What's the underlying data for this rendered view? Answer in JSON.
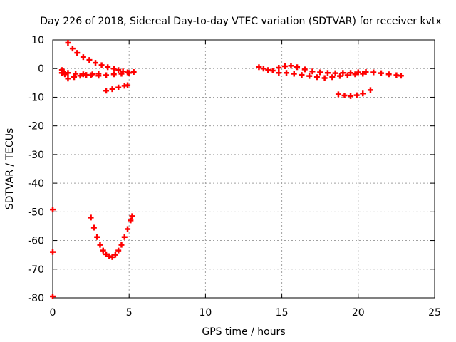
{
  "chart_data": {
    "type": "scatter",
    "title": "Day 226 of 2018, Sidereal Day-to-day VTEC variation (SDTVAR) for receiver kvtx",
    "xlabel": "GPS time / hours",
    "ylabel": "SDTVAR / TECUs",
    "xlim": [
      0,
      25
    ],
    "ylim": [
      -80,
      10
    ],
    "xticks": [
      0,
      5,
      10,
      15,
      20,
      25
    ],
    "yticks": [
      -80,
      -70,
      -60,
      -50,
      -40,
      -30,
      -20,
      -10,
      0,
      10
    ],
    "grid": true,
    "marker": "plus",
    "color": "#ff0000",
    "series": [
      {
        "x": [
          1.0,
          1.3,
          1.6,
          2.0,
          2.4,
          2.8,
          3.2,
          3.6,
          4.0,
          4.3,
          4.6,
          4.9
        ],
        "y": [
          9.0,
          7.0,
          5.5,
          4.0,
          3.0,
          2.0,
          1.2,
          0.5,
          0.0,
          -0.5,
          -1.0,
          -1.3
        ]
      },
      {
        "x": [
          0.6,
          1.0,
          1.5,
          2.0,
          2.5,
          3.0,
          3.5,
          4.0,
          4.5,
          5.0,
          5.3
        ],
        "y": [
          -1.5,
          -1.5,
          -1.8,
          -2.0,
          -2.3,
          -2.5,
          -2.3,
          -2.0,
          -1.8,
          -1.5,
          -1.2
        ]
      },
      {
        "x": [
          1.0,
          1.4,
          1.8,
          2.2,
          2.6,
          3.0
        ],
        "y": [
          -3.5,
          -3.0,
          -2.5,
          -2.2,
          -2.0,
          -1.8
        ]
      },
      {
        "x": [
          0.6,
          0.7,
          0.8
        ],
        "y": [
          -0.5,
          -1.0,
          -2.0
        ]
      },
      {
        "x": [
          3.5,
          3.9,
          4.3,
          4.7,
          4.9
        ],
        "y": [
          -7.7,
          -7.2,
          -6.6,
          -6.0,
          -5.8
        ]
      },
      {
        "x": [
          13.5,
          13.8,
          14.1,
          14.4,
          14.8,
          15.2,
          15.6,
          16.0,
          16.5,
          17.0,
          17.5,
          18.0,
          18.5,
          19.0,
          19.5,
          20.0,
          20.5,
          21.0,
          21.5,
          22.0,
          22.5,
          22.8
        ],
        "y": [
          0.5,
          0.0,
          -0.5,
          -0.7,
          0.3,
          0.8,
          1.0,
          0.5,
          -0.3,
          -1.0,
          -1.3,
          -1.5,
          -1.6,
          -1.5,
          -1.5,
          -1.3,
          -1.2,
          -1.3,
          -1.6,
          -2.0,
          -2.3,
          -2.5
        ]
      },
      {
        "x": [
          14.8,
          15.3,
          15.8,
          16.3,
          16.8,
          17.3,
          17.8,
          18.3,
          18.8,
          19.3,
          19.8,
          20.3
        ],
        "y": [
          -1.5,
          -1.5,
          -1.8,
          -2.2,
          -2.6,
          -3.0,
          -3.3,
          -3.0,
          -2.6,
          -2.3,
          -2.0,
          -1.8
        ]
      },
      {
        "x": [
          18.7,
          19.1,
          19.5,
          19.9,
          20.3,
          20.8
        ],
        "y": [
          -9.0,
          -9.4,
          -9.6,
          -9.3,
          -8.7,
          -7.5
        ]
      },
      {
        "x": [
          2.5,
          2.7,
          2.9,
          3.1,
          3.3,
          3.5,
          3.7,
          3.9,
          4.1,
          4.3,
          4.5,
          4.7,
          4.9,
          5.1,
          5.2
        ],
        "y": [
          -52.0,
          -55.5,
          -58.8,
          -61.5,
          -63.5,
          -64.8,
          -65.5,
          -65.8,
          -65.0,
          -63.5,
          -61.5,
          -58.8,
          -56.0,
          -53.0,
          -51.5
        ]
      },
      {
        "x": [
          0.0,
          0.0,
          0.0
        ],
        "y": [
          -49.2,
          -64.0,
          -79.5
        ]
      }
    ]
  }
}
